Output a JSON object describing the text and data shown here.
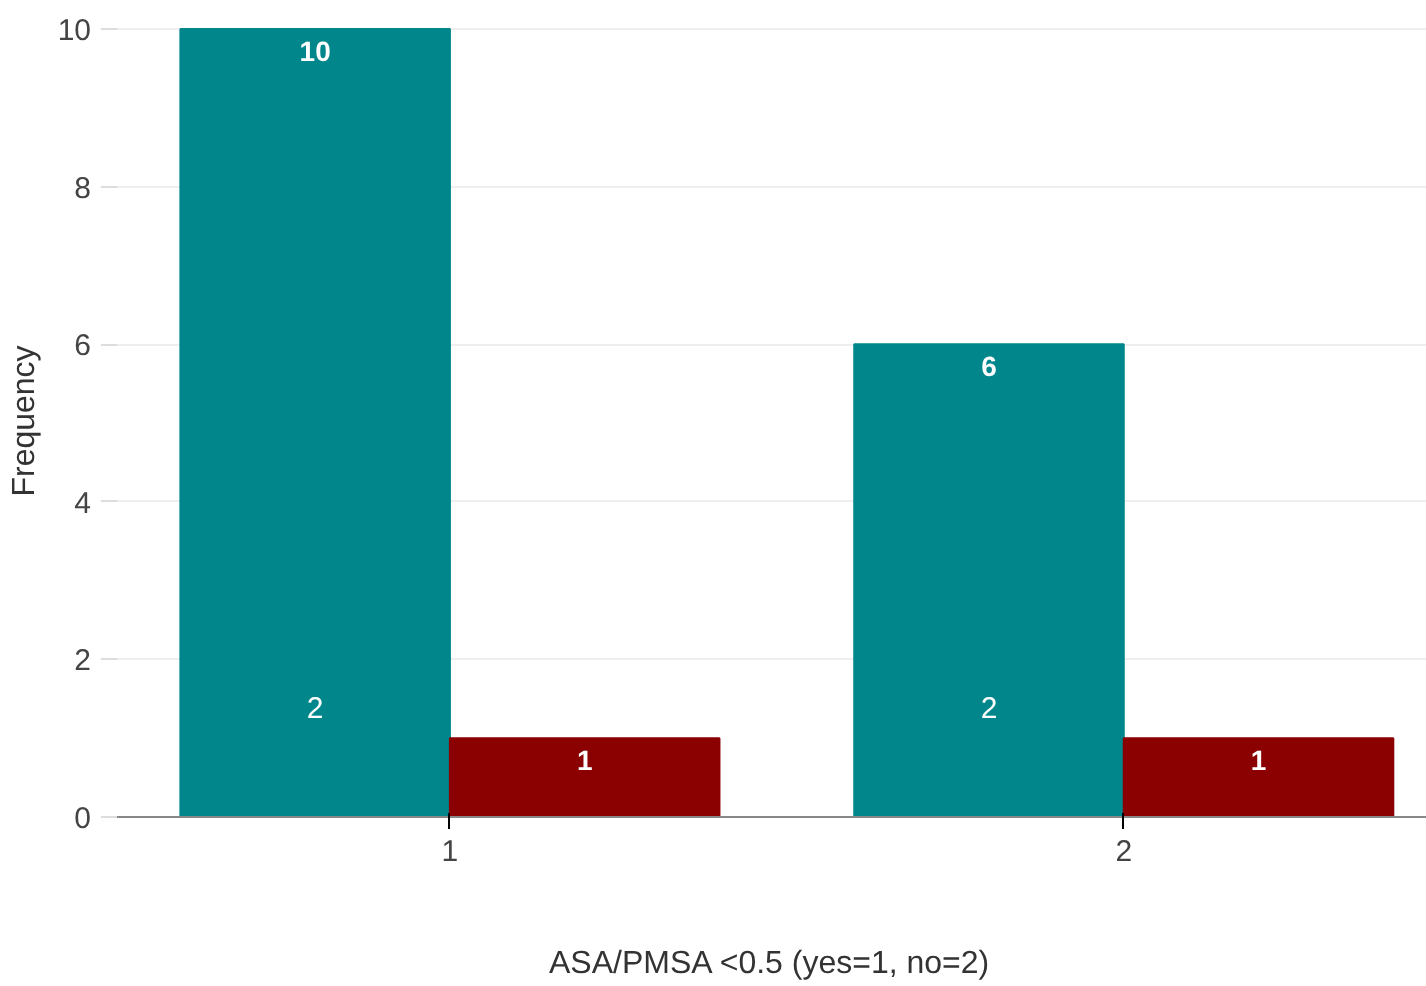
{
  "chart_data": {
    "type": "bar",
    "xlabel": "ASA/PMSA <0.5 (yes=1, no=2)",
    "ylabel": "Frequency",
    "categories": [
      "1",
      "2"
    ],
    "series": [
      {
        "color": "#00868b",
        "values": [
          10,
          6
        ],
        "value_labels": [
          "10",
          "6"
        ]
      },
      {
        "color": "#8b0000",
        "values": [
          1,
          1
        ],
        "value_labels": [
          "1",
          "1"
        ]
      }
    ],
    "annotations": [
      "2",
      "2"
    ],
    "ylim": [
      0,
      10
    ],
    "yticks": [
      0,
      2,
      4,
      6,
      8,
      10
    ],
    "grid": "y"
  }
}
